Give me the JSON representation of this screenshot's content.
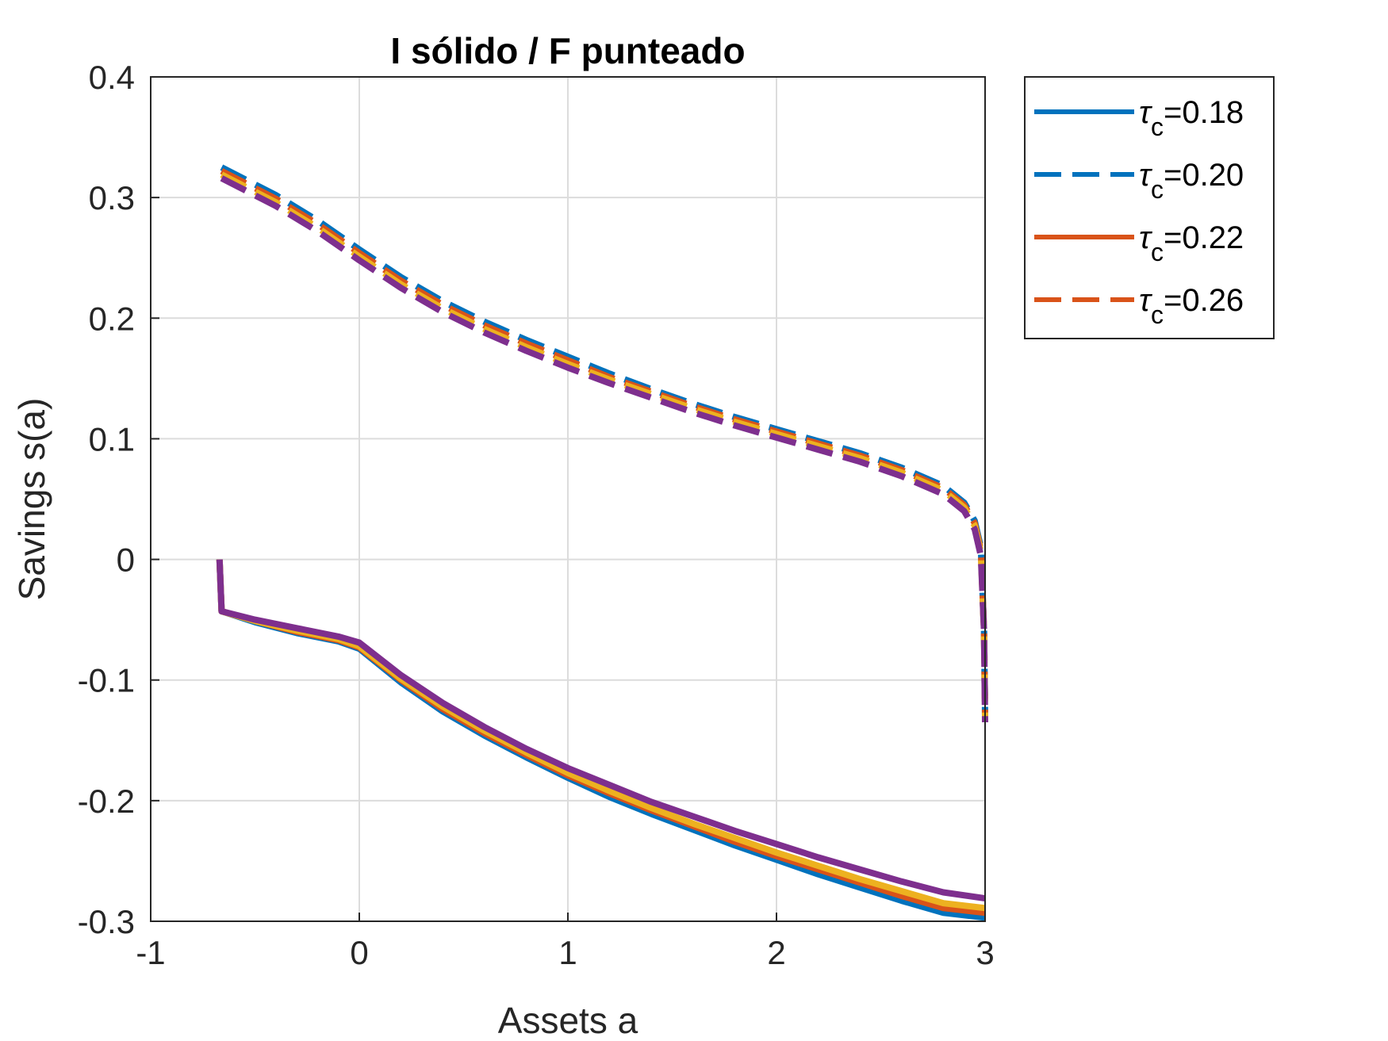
{
  "chart_data": {
    "type": "line",
    "title": "I sólido / F punteado",
    "xlabel": "Assets a",
    "ylabel": "Savings s(a)",
    "xlim": [
      -1,
      3
    ],
    "ylim": [
      -0.3,
      0.4
    ],
    "xticks": [
      -1,
      0,
      1,
      2,
      3
    ],
    "yticks": [
      -0.3,
      -0.2,
      -0.1,
      0,
      0.1,
      0.2,
      0.3,
      0.4
    ],
    "grid": true,
    "legend_position": "outside-top-right",
    "legend": [
      {
        "symbol": "τ",
        "subscript": "c",
        "text": "=0.18",
        "color": "#0072BD",
        "style": "solid"
      },
      {
        "symbol": "τ",
        "subscript": "c",
        "text": "=0.20",
        "color": "#0072BD",
        "style": "dashed"
      },
      {
        "symbol": "τ",
        "subscript": "c",
        "text": "=0.22",
        "color": "#D95319",
        "style": "solid"
      },
      {
        "symbol": "τ",
        "subscript": "c",
        "text": "=0.26",
        "color": "#D95319",
        "style": "dashed"
      }
    ],
    "series": [
      {
        "name": "τc=0.18",
        "color": "#0072BD",
        "style": "solid",
        "x": [
          -0.67,
          -0.66,
          -0.5,
          -0.3,
          -0.1,
          0.0,
          0.2,
          0.4,
          0.6,
          0.8,
          1.0,
          1.2,
          1.4,
          1.6,
          1.8,
          2.0,
          2.2,
          2.4,
          2.6,
          2.8,
          3.0
        ],
        "y": [
          0.0,
          -0.043,
          -0.052,
          -0.061,
          -0.068,
          -0.074,
          -0.102,
          -0.126,
          -0.146,
          -0.164,
          -0.181,
          -0.197,
          -0.211,
          -0.224,
          -0.237,
          -0.249,
          -0.261,
          -0.272,
          -0.283,
          -0.293,
          -0.297
        ]
      },
      {
        "name": "τc=0.20",
        "color": "#0072BD",
        "style": "dashed",
        "x": [
          -0.66,
          -0.4,
          -0.2,
          0.0,
          0.2,
          0.4,
          0.6,
          0.8,
          1.0,
          1.2,
          1.4,
          1.6,
          1.8,
          2.0,
          2.2,
          2.4,
          2.6,
          2.8,
          2.9,
          2.95,
          2.98,
          2.995,
          3.0
        ],
        "y": [
          0.325,
          0.302,
          0.281,
          0.257,
          0.234,
          0.214,
          0.197,
          0.182,
          0.168,
          0.154,
          0.141,
          0.129,
          0.118,
          0.108,
          0.098,
          0.088,
          0.076,
          0.061,
          0.047,
          0.032,
          0.01,
          -0.06,
          -0.13
        ]
      },
      {
        "name": "τc=0.22",
        "color": "#D95319",
        "style": "solid",
        "x": [
          -0.67,
          -0.66,
          -0.5,
          -0.3,
          -0.1,
          0.0,
          0.2,
          0.4,
          0.6,
          0.8,
          1.0,
          1.2,
          1.4,
          1.6,
          1.8,
          2.0,
          2.2,
          2.4,
          2.6,
          2.8,
          3.0
        ],
        "y": [
          0.0,
          -0.043,
          -0.051,
          -0.06,
          -0.067,
          -0.073,
          -0.1,
          -0.124,
          -0.144,
          -0.162,
          -0.179,
          -0.194,
          -0.208,
          -0.221,
          -0.234,
          -0.246,
          -0.257,
          -0.268,
          -0.279,
          -0.289,
          -0.293
        ]
      },
      {
        "name": "τc=0.26",
        "color": "#D95319",
        "style": "dashed",
        "x": [
          -0.66,
          -0.4,
          -0.2,
          0.0,
          0.2,
          0.4,
          0.6,
          0.8,
          1.0,
          1.2,
          1.4,
          1.6,
          1.8,
          2.0,
          2.2,
          2.4,
          2.6,
          2.8,
          2.9,
          2.95,
          2.98,
          2.995,
          3.0
        ],
        "y": [
          0.322,
          0.299,
          0.278,
          0.254,
          0.231,
          0.211,
          0.194,
          0.179,
          0.165,
          0.151,
          0.139,
          0.127,
          0.116,
          0.106,
          0.096,
          0.086,
          0.074,
          0.059,
          0.045,
          0.03,
          0.008,
          -0.06,
          -0.13
        ]
      },
      {
        "color": "#EDB120",
        "style": "solid",
        "x": [
          -0.67,
          -0.66,
          -0.5,
          -0.3,
          -0.1,
          0.0,
          0.2,
          0.4,
          0.6,
          0.8,
          1.0,
          1.2,
          1.4,
          1.6,
          1.8,
          2.0,
          2.2,
          2.4,
          2.6,
          2.8,
          3.0
        ],
        "y": [
          0.0,
          -0.043,
          -0.051,
          -0.059,
          -0.066,
          -0.072,
          -0.099,
          -0.122,
          -0.142,
          -0.16,
          -0.177,
          -0.192,
          -0.206,
          -0.219,
          -0.231,
          -0.243,
          -0.254,
          -0.265,
          -0.275,
          -0.285,
          -0.289
        ]
      },
      {
        "color": "#EDB120",
        "style": "dashed",
        "x": [
          -0.66,
          -0.4,
          -0.2,
          0.0,
          0.2,
          0.4,
          0.6,
          0.8,
          1.0,
          1.2,
          1.4,
          1.6,
          1.8,
          2.0,
          2.2,
          2.4,
          2.6,
          2.8,
          2.9,
          2.95,
          2.98,
          2.995,
          3.0
        ],
        "y": [
          0.319,
          0.296,
          0.275,
          0.251,
          0.228,
          0.208,
          0.191,
          0.176,
          0.162,
          0.149,
          0.137,
          0.125,
          0.114,
          0.104,
          0.094,
          0.084,
          0.072,
          0.057,
          0.043,
          0.028,
          0.006,
          -0.06,
          -0.13
        ]
      },
      {
        "color": "#7E2F8E",
        "style": "solid",
        "x": [
          -0.67,
          -0.66,
          -0.5,
          -0.3,
          -0.1,
          0.0,
          0.2,
          0.4,
          0.6,
          0.8,
          1.0,
          1.2,
          1.4,
          1.6,
          1.8,
          2.0,
          2.2,
          2.4,
          2.6,
          2.8,
          3.0
        ],
        "y": [
          0.0,
          -0.043,
          -0.05,
          -0.057,
          -0.064,
          -0.069,
          -0.096,
          -0.119,
          -0.139,
          -0.157,
          -0.173,
          -0.187,
          -0.201,
          -0.213,
          -0.225,
          -0.236,
          -0.247,
          -0.257,
          -0.267,
          -0.276,
          -0.281
        ]
      },
      {
        "color": "#7E2F8E",
        "style": "dashed",
        "x": [
          -0.66,
          -0.4,
          -0.2,
          0.0,
          0.2,
          0.4,
          0.6,
          0.8,
          1.0,
          1.2,
          1.4,
          1.6,
          1.8,
          2.0,
          2.2,
          2.4,
          2.6,
          2.8,
          2.9,
          2.95,
          2.98,
          2.995,
          3.0
        ],
        "y": [
          0.316,
          0.293,
          0.272,
          0.248,
          0.225,
          0.205,
          0.188,
          0.173,
          0.159,
          0.146,
          0.134,
          0.122,
          0.111,
          0.101,
          0.091,
          0.081,
          0.069,
          0.054,
          0.04,
          0.025,
          0.003,
          -0.06,
          -0.135
        ]
      }
    ]
  }
}
